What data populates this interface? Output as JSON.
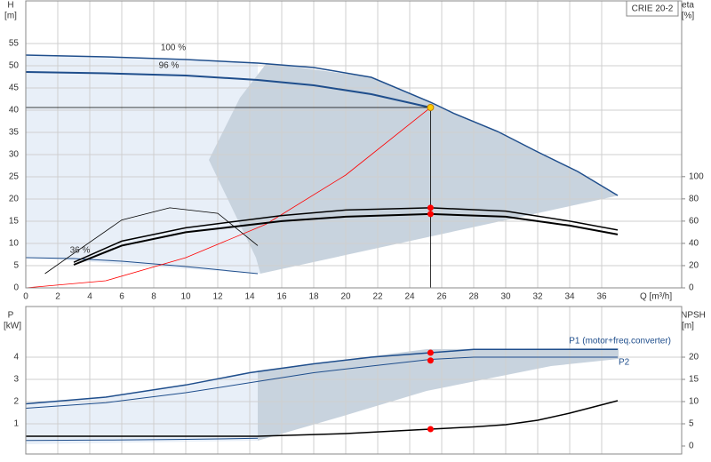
{
  "chart_data": [
    {
      "type": "line",
      "title": "CRIE 20-2",
      "y_label": "H",
      "y_unit": "[m]",
      "y2_label": "eta",
      "y2_unit": "[%]",
      "x_label": "Q [m³/h]",
      "xlim": [
        0,
        41
      ],
      "xticks": [
        0,
        2,
        4,
        6,
        8,
        10,
        12,
        14,
        16,
        18,
        20,
        22,
        24,
        26,
        28,
        30,
        32,
        34,
        36
      ],
      "show_xtick_labels": true,
      "ylim": [
        0,
        64.6
      ],
      "yticks": [
        0,
        5,
        10,
        15,
        20,
        25,
        30,
        35,
        40,
        45,
        50,
        55
      ],
      "y2lim": [
        0,
        258
      ],
      "y2ticks": [
        0,
        20,
        40,
        60,
        80,
        100
      ],
      "grid": true,
      "series": [
        {
          "name": "100 %",
          "color": "#1f4e8c",
          "width": 1.5,
          "x": [
            0,
            5,
            10,
            14.5,
            18,
            21.6,
            25.3,
            26.8,
            29.5,
            32,
            34.5,
            37
          ],
          "values": [
            52.4,
            52,
            51.4,
            50.6,
            49.6,
            47.4,
            41.8,
            39.2,
            35.2,
            30.6,
            26.2,
            20.8
          ]
        },
        {
          "name": "96 %",
          "color": "#1f4e8c",
          "width": 2,
          "x": [
            0,
            5,
            10,
            14.5,
            18,
            21.6,
            25.3
          ],
          "values": [
            48.6,
            48.3,
            47.8,
            46.8,
            45.6,
            43.6,
            40.6
          ]
        },
        {
          "name": "36 %",
          "color": "#1f4e8c",
          "width": 1,
          "x": [
            0,
            3,
            6,
            10,
            14.5
          ],
          "values": [
            6.8,
            6.6,
            6.0,
            4.8,
            3.2
          ]
        },
        {
          "color": "#ff0000",
          "width": 0.8,
          "x": [
            0,
            5,
            10,
            15,
            20,
            25.3
          ],
          "values": [
            0,
            1.6,
            6.8,
            14.3,
            25.4,
            40.6
          ]
        },
        {
          "color": "#000000",
          "width": 2,
          "axis": "y2",
          "x": [
            3,
            6,
            10,
            16,
            20,
            25.3,
            30,
            34,
            37
          ],
          "values": [
            20.8,
            38,
            50,
            60,
            64,
            66.4,
            64,
            56,
            48
          ]
        },
        {
          "color": "#000000",
          "width": 1.5,
          "axis": "y2",
          "x": [
            3,
            6,
            10,
            16,
            20,
            25.3,
            30,
            34,
            37
          ],
          "values": [
            23,
            42,
            54,
            65,
            70,
            72,
            69,
            60,
            52
          ]
        },
        {
          "color": "#000000",
          "width": 0.8,
          "axis": "y2",
          "x": [
            1.2,
            3,
            6,
            9,
            12,
            14.5
          ],
          "values": [
            12.8,
            31,
            61,
            72,
            67,
            38
          ]
        },
        {
          "color": "#000000",
          "width": 0.8,
          "x": [
            0,
            25.3
          ],
          "values": [
            40.6,
            40.6
          ]
        },
        {
          "color": "#000000",
          "width": 0.8,
          "x": [
            25.3,
            25.3
          ],
          "values": [
            40.6,
            0
          ]
        },
        {
          "color": "#ffcc00",
          "marker": true,
          "x": [
            25.3
          ],
          "values": [
            40.6
          ]
        },
        {
          "color": "#ff0000",
          "marker": true,
          "axis": "y2",
          "x": [
            25.3,
            25.3
          ],
          "values": [
            72,
            66.4
          ]
        }
      ]
    },
    {
      "type": "line",
      "y_label": "P",
      "y_unit": "[kW]",
      "y2_label": "NPSH",
      "y2_unit": "[m]",
      "xlim": [
        0,
        41
      ],
      "xticks": [
        0,
        2,
        4,
        6,
        8,
        10,
        12,
        14,
        16,
        18,
        20,
        22,
        24,
        26,
        28,
        30,
        32,
        34,
        36
      ],
      "show_xtick_labels": false,
      "ylim": [
        -0.36,
        6.28
      ],
      "yticks": [
        1,
        2,
        3,
        4
      ],
      "y2lim": [
        -1.8,
        31.4
      ],
      "y2ticks": [
        0,
        5,
        10,
        15,
        20
      ],
      "grid": true,
      "series": [
        {
          "name": "P1 (motor+freq.converter)",
          "color": "#1f4e8c",
          "width": 1.5,
          "x": [
            0,
            5,
            10,
            14,
            18,
            21.6,
            25.3,
            28,
            32,
            37
          ],
          "values": [
            1.9,
            2.2,
            2.75,
            3.3,
            3.7,
            4.0,
            4.2,
            4.35,
            4.35,
            4.35
          ]
        },
        {
          "name": "P2",
          "color": "#1f4e8c",
          "width": 1,
          "x": [
            0,
            5,
            10,
            14,
            18,
            21.6,
            25.3,
            28,
            32,
            37
          ],
          "values": [
            1.7,
            1.95,
            2.4,
            2.85,
            3.3,
            3.6,
            3.9,
            4.0,
            4.0,
            4.0
          ]
        },
        {
          "color": "#000000",
          "width": 1.5,
          "axis": "y2",
          "x": [
            0,
            14.5,
            20,
            25.3,
            28,
            30,
            32,
            34,
            37
          ],
          "values": [
            2.2,
            2.2,
            2.8,
            3.8,
            4.3,
            4.8,
            5.8,
            7.4,
            10.2
          ]
        },
        {
          "color": "#1f4e8c",
          "width": 1,
          "x": [
            0,
            5,
            10,
            14.5
          ],
          "values": [
            0.25,
            0.27,
            0.3,
            0.35
          ]
        },
        {
          "color": "#ff0000",
          "marker": true,
          "x": [
            25.3,
            25.3
          ],
          "values": [
            4.2,
            3.85
          ]
        },
        {
          "color": "#ff0000",
          "marker": true,
          "axis": "y2",
          "x": [
            25.3
          ],
          "values": [
            3.8
          ]
        }
      ]
    }
  ]
}
